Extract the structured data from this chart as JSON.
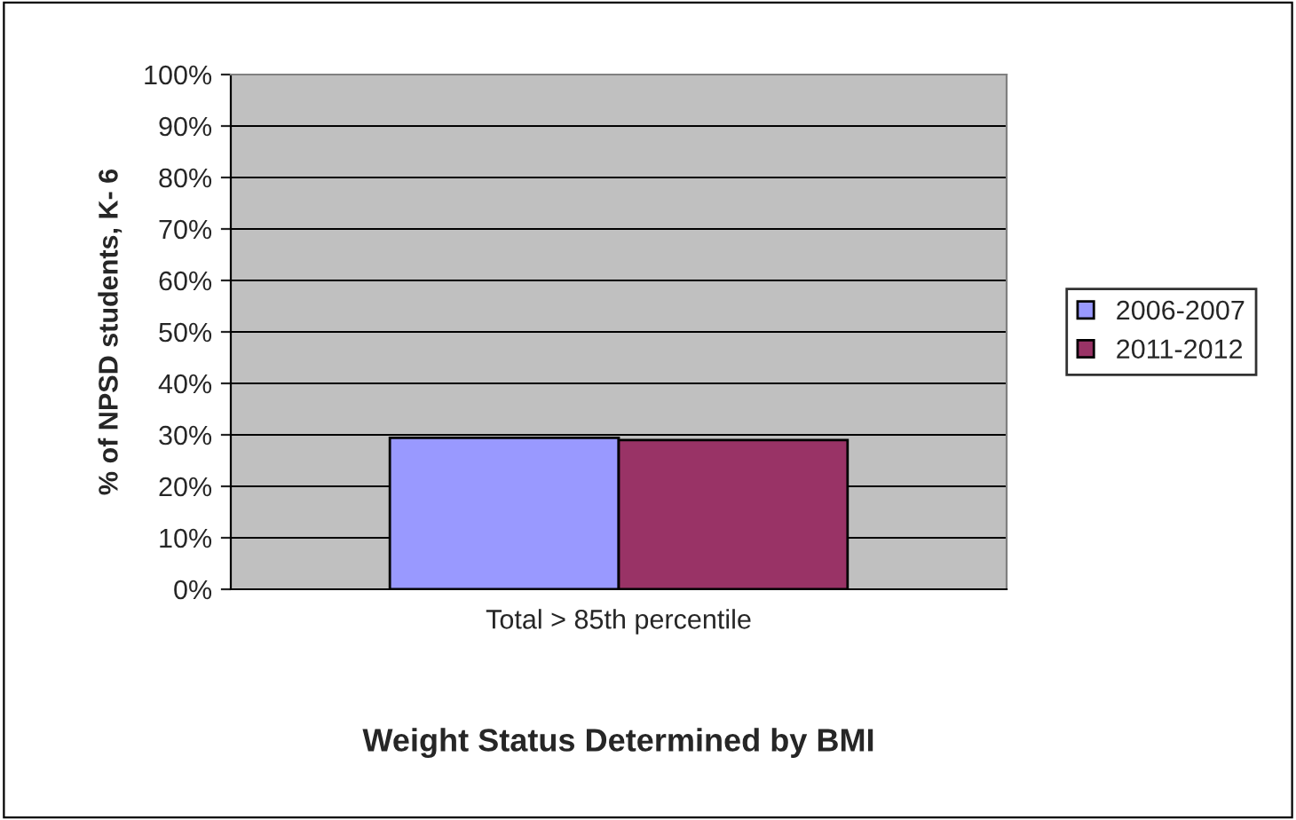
{
  "chart_data": {
    "type": "bar",
    "xlabel": "Weight Status Determined by BMI",
    "ylabel": "% of NPSD students, K- 6",
    "categories": [
      "Total > 85th percentile"
    ],
    "series": [
      {
        "name": "2006-2007",
        "color": "#9999ff",
        "values": [
          29.4
        ]
      },
      {
        "name": "2011-2012",
        "color": "#993366",
        "values": [
          29.0
        ]
      }
    ],
    "ylim": [
      0,
      100
    ],
    "yticks": [
      {
        "value": 0,
        "label": "0%"
      },
      {
        "value": 10,
        "label": "10%"
      },
      {
        "value": 20,
        "label": "20%"
      },
      {
        "value": 30,
        "label": "30%"
      },
      {
        "value": 40,
        "label": "40%"
      },
      {
        "value": 50,
        "label": "50%"
      },
      {
        "value": 60,
        "label": "60%"
      },
      {
        "value": 70,
        "label": "70%"
      },
      {
        "value": 80,
        "label": "80%"
      },
      {
        "value": 90,
        "label": "90%"
      },
      {
        "value": 100,
        "label": "100%"
      }
    ],
    "grid": "y",
    "legend": "right"
  }
}
